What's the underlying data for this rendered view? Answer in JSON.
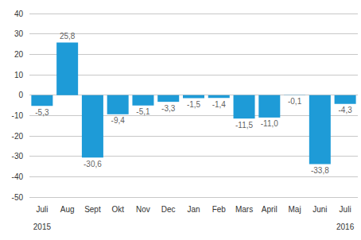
{
  "chart_data": {
    "type": "bar",
    "categories": [
      "Juli",
      "Aug",
      "Sept",
      "Okt",
      "Nov",
      "Dec",
      "Jan",
      "Feb",
      "Mars",
      "April",
      "Maj",
      "Juni",
      "Juli"
    ],
    "years": [
      "2015",
      null,
      null,
      null,
      null,
      null,
      null,
      null,
      null,
      null,
      null,
      null,
      "2016"
    ],
    "values": [
      -5.3,
      25.8,
      -30.6,
      -9.4,
      -5.1,
      -3.3,
      -1.5,
      -1.4,
      -11.5,
      -11.0,
      -0.1,
      -33.8,
      -4.3
    ],
    "value_labels": [
      "-5,3",
      "25,8",
      "-30,6",
      "-9,4",
      "-5,1",
      "-3,3",
      "-1,5",
      "-1,4",
      "-11,5",
      "-11,0",
      "-0,1",
      "-33,8",
      "-4,3"
    ],
    "color": "#1e9bd7",
    "ylim": [
      -50,
      40
    ],
    "yticks": [
      -50,
      -40,
      -30,
      -20,
      -10,
      0,
      10,
      20,
      30,
      40
    ],
    "grid": true,
    "data_labels": true
  }
}
